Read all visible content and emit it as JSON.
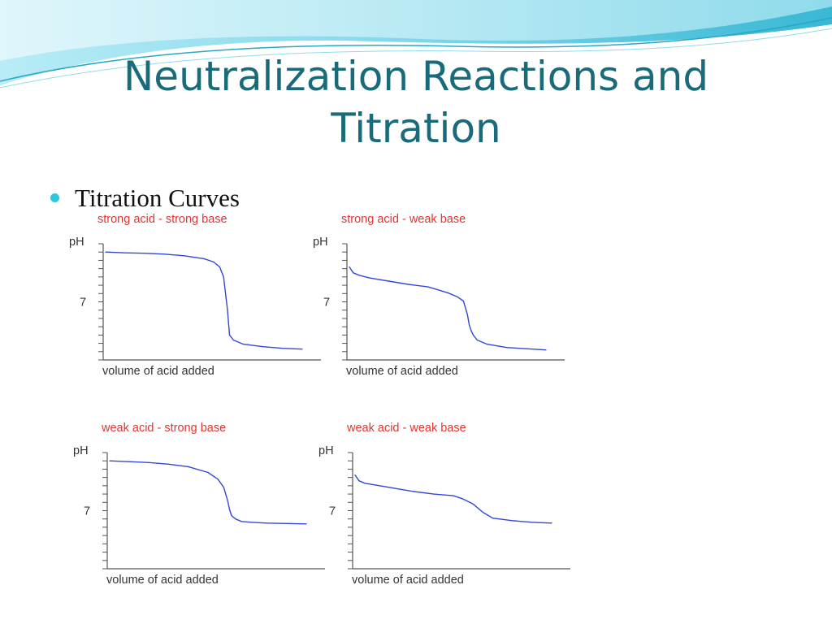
{
  "slide": {
    "title_line1": "Neutralization Reactions and",
    "title_line2": "Titration",
    "bullet": "Titration Curves"
  },
  "colors": {
    "title": "#1a6b7a",
    "bullet": "#2cc6e0",
    "chart_title": "#e3342f",
    "curve": "#3347d6",
    "axis": "#555555"
  },
  "chart_data": [
    {
      "type": "line",
      "title": "strong acid - strong base",
      "xlabel": "volume of acid added",
      "ylabel": "pH",
      "ytick_label": "7",
      "ytick_value": 7,
      "ylim": [
        0,
        14
      ],
      "xlim": [
        0,
        100
      ],
      "x": [
        0,
        10,
        20,
        30,
        40,
        50,
        55,
        58,
        60,
        61,
        62,
        63,
        65,
        70,
        80,
        90,
        100
      ],
      "y": [
        13,
        12.9,
        12.85,
        12.75,
        12.55,
        12.2,
        11.8,
        11.2,
        10,
        8,
        6,
        3,
        2.4,
        1.9,
        1.6,
        1.4,
        1.3
      ]
    },
    {
      "type": "line",
      "title": "strong acid - weak base",
      "xlabel": "volume of acid added",
      "ylabel": "pH",
      "ytick_label": "7",
      "ytick_value": 7,
      "ylim": [
        0,
        14
      ],
      "xlim": [
        0,
        100
      ],
      "x": [
        0,
        2,
        5,
        10,
        20,
        30,
        40,
        50,
        55,
        58,
        60,
        61,
        62,
        63,
        65,
        70,
        80,
        90,
        100
      ],
      "y": [
        11.2,
        10.5,
        10.2,
        9.9,
        9.5,
        9.1,
        8.8,
        8.1,
        7.6,
        7.1,
        5.5,
        4.2,
        3.5,
        3,
        2.4,
        1.9,
        1.5,
        1.35,
        1.2
      ]
    },
    {
      "type": "line",
      "title": "weak acid - strong base",
      "xlabel": "volume of acid added",
      "ylabel": "pH",
      "ytick_label": "7",
      "ytick_value": 7,
      "ylim": [
        0,
        14
      ],
      "xlim": [
        0,
        100
      ],
      "x": [
        0,
        10,
        20,
        30,
        40,
        50,
        55,
        58,
        60,
        61,
        62,
        64,
        67,
        72,
        80,
        90,
        100
      ],
      "y": [
        13,
        12.9,
        12.8,
        12.6,
        12.3,
        11.6,
        10.8,
        9.8,
        8.2,
        7.1,
        6.4,
        6,
        5.7,
        5.6,
        5.5,
        5.45,
        5.4
      ]
    },
    {
      "type": "line",
      "title": "weak acid - weak base",
      "xlabel": "volume of acid added",
      "ylabel": "pH",
      "ytick_label": "7",
      "ytick_value": 7,
      "ylim": [
        0,
        14
      ],
      "xlim": [
        0,
        100
      ],
      "x": [
        0,
        2,
        5,
        10,
        20,
        30,
        40,
        50,
        55,
        60,
        65,
        70,
        80,
        90,
        100
      ],
      "y": [
        11.3,
        10.6,
        10.3,
        10.1,
        9.7,
        9.3,
        9,
        8.8,
        8.4,
        7.8,
        6.8,
        6.1,
        5.8,
        5.6,
        5.5
      ]
    }
  ]
}
